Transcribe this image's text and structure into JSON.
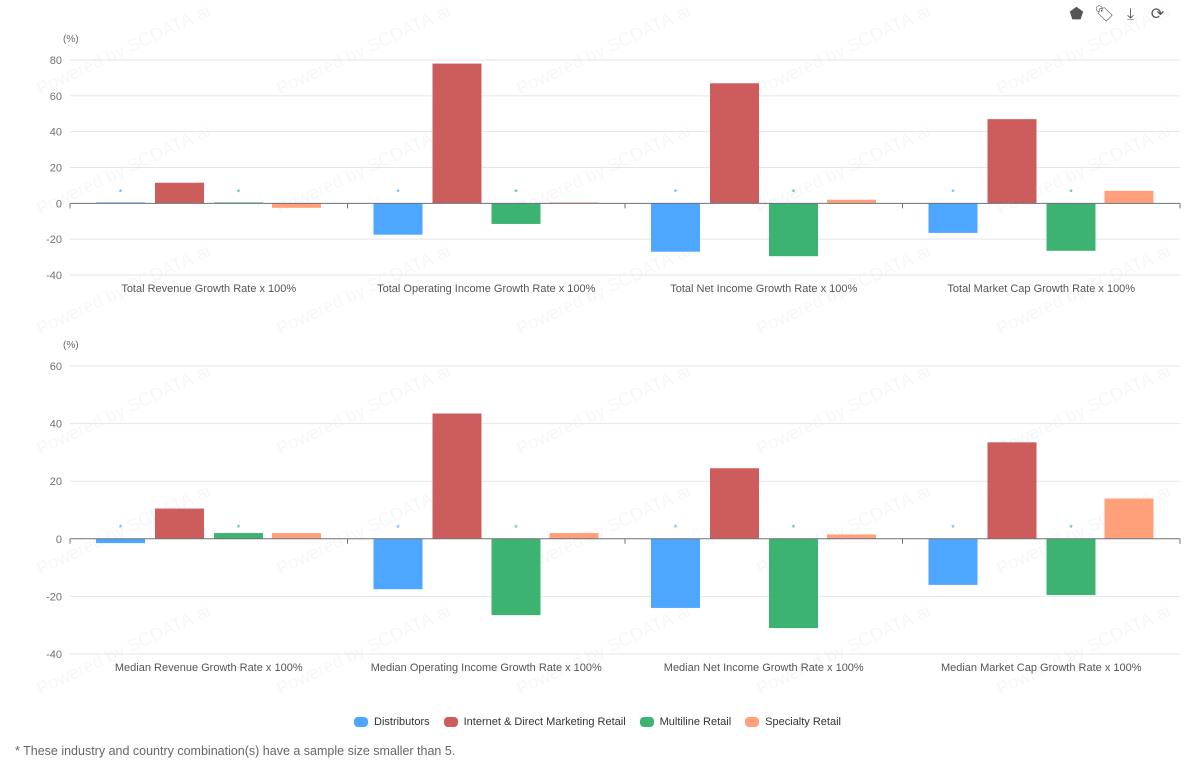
{
  "toolbar": {
    "icons": [
      "pentagon-chart-icon",
      "tag-icon",
      "download-icon",
      "refresh-icon"
    ]
  },
  "series": [
    {
      "name": "Distributors",
      "color": "#4da6ff"
    },
    {
      "name": "Internet & Direct Marketing Retail",
      "color": "#cd5c5c"
    },
    {
      "name": "Multiline Retail",
      "color": "#3cb371"
    },
    {
      "name": "Specialty Retail",
      "color": "#ffa07a"
    }
  ],
  "watermark": "Powered by SCDATA.ai",
  "footnote": "* These industry and country combination(s) have a sample size smaller than 5.",
  "chart_data": [
    {
      "type": "bar",
      "ylabel": "(%)",
      "ylim": [
        -40,
        80
      ],
      "yticks": [
        80,
        60,
        40,
        20,
        0,
        -20,
        -40
      ],
      "categories": [
        "Total Revenue Growth Rate x 100%",
        "Total Operating Income Growth Rate x 100%",
        "Total Net Income Growth Rate x 100%",
        "Total Market Cap Growth Rate x 100%"
      ],
      "series": [
        {
          "name": "Distributors",
          "values": [
            0.5,
            -17.5,
            -27,
            -16.5
          ],
          "asterisk": true
        },
        {
          "name": "Internet & Direct Marketing Retail",
          "values": [
            11.5,
            78,
            67,
            47
          ]
        },
        {
          "name": "Multiline Retail",
          "values": [
            0.5,
            -11.5,
            -29.5,
            -26.5
          ],
          "asterisk": true
        },
        {
          "name": "Specialty Retail",
          "values": [
            -2.5,
            0.5,
            2,
            7
          ]
        }
      ]
    },
    {
      "type": "bar",
      "ylabel": "(%)",
      "ylim": [
        -40,
        60
      ],
      "yticks": [
        60,
        40,
        20,
        0,
        -20,
        -40
      ],
      "categories": [
        "Median Revenue Growth Rate x 100%",
        "Median Operating Income Growth Rate x 100%",
        "Median Net Income Growth Rate x 100%",
        "Median Market Cap Growth Rate x 100%"
      ],
      "series": [
        {
          "name": "Distributors",
          "values": [
            -1.5,
            -17.5,
            -24,
            -16
          ],
          "asterisk": true
        },
        {
          "name": "Internet & Direct Marketing Retail",
          "values": [
            10.5,
            43.5,
            24.5,
            33.5
          ]
        },
        {
          "name": "Multiline Retail",
          "values": [
            2,
            -26.5,
            -31,
            -19.5
          ],
          "asterisk": true
        },
        {
          "name": "Specialty Retail",
          "values": [
            2,
            2,
            1.5,
            14
          ]
        }
      ]
    }
  ]
}
